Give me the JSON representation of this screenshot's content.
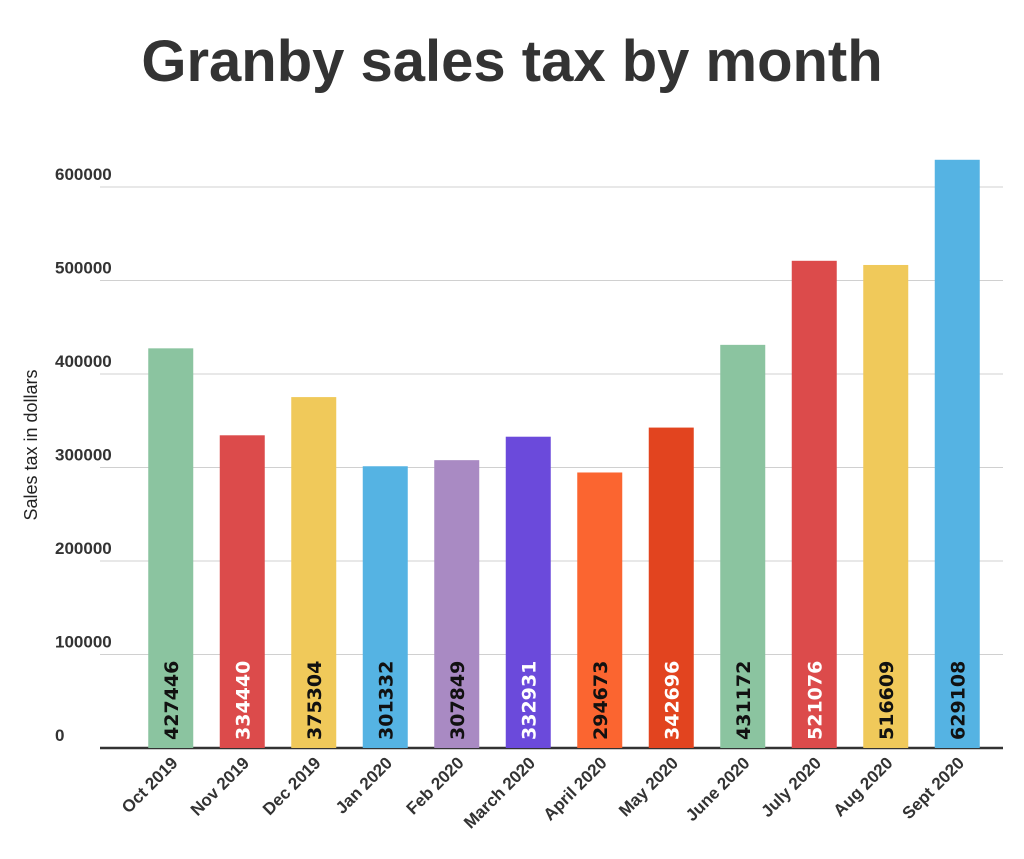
{
  "chart_data": {
    "type": "bar",
    "title": "Granby sales tax by month",
    "xlabel": "",
    "ylabel": "Sales tax in dollars",
    "ylim": [
      0,
      600000
    ],
    "yticks": [
      0,
      100000,
      200000,
      300000,
      400000,
      500000,
      600000
    ],
    "grid": true,
    "categories": [
      "Oct 2019",
      "Nov 2019",
      "Dec 2019",
      "Jan 2020",
      "Feb 2020",
      "March 2020",
      "April 2020",
      "May 2020",
      "June 2020",
      "July 2020",
      "Aug 2020",
      "Sept 2020"
    ],
    "values": [
      427446,
      334440,
      375304,
      301332,
      307849,
      332931,
      294673,
      342696,
      431172,
      521076,
      516609,
      629108
    ],
    "colors": [
      "#8bc4a0",
      "#dc4b4b",
      "#f0c95a",
      "#55b3e3",
      "#a98ac3",
      "#6b4adb",
      "#fb6530",
      "#e2441f",
      "#8bc4a0",
      "#dc4b4b",
      "#f0c95a",
      "#55b3e3"
    ],
    "label_colors": [
      "#111",
      "#fff",
      "#111",
      "#111",
      "#111",
      "#fff",
      "#111",
      "#fff",
      "#111",
      "#fff",
      "#111",
      "#111"
    ]
  }
}
